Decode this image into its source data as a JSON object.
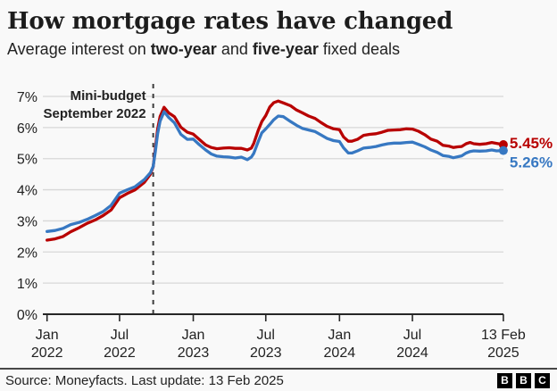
{
  "header": {
    "title": "How mortgage rates have changed",
    "subtitle_prefix": "Average interest on ",
    "series1_label": "two-year",
    "subtitle_and": " and ",
    "series2_label": "five-year",
    "subtitle_suffix": " fixed deals"
  },
  "colors": {
    "two_year": "#b80000",
    "five_year": "#3778c2",
    "grid": "#d8d8d8",
    "axis": "#262626",
    "dashed_line": "#3c3c3c",
    "text": "#222222",
    "background": "#f9f9f9"
  },
  "chart_data": {
    "type": "line",
    "x_unit": "days since 1 Jan 2022",
    "ylim": [
      0,
      7
    ],
    "grid": "horizontal",
    "y_ticks": [
      {
        "label": "0%",
        "value": 0
      },
      {
        "label": "1%",
        "value": 1
      },
      {
        "label": "2%",
        "value": 2
      },
      {
        "label": "3%",
        "value": 3
      },
      {
        "label": "4%",
        "value": 4
      },
      {
        "label": "5%",
        "value": 5
      },
      {
        "label": "6%",
        "value": 6
      },
      {
        "label": "7%",
        "value": 7
      }
    ],
    "x_ticks": [
      {
        "line1": "Jan",
        "line2": "2022",
        "day": 0
      },
      {
        "line1": "Jul",
        "line2": "2022",
        "day": 181
      },
      {
        "line1": "Jan",
        "line2": "2023",
        "day": 365
      },
      {
        "line1": "Jul",
        "line2": "2023",
        "day": 546
      },
      {
        "line1": "Jan",
        "line2": "2024",
        "day": 730
      },
      {
        "line1": "Jul",
        "line2": "2024",
        "day": 912
      },
      {
        "line1": "13 Feb",
        "line2": "2025",
        "day": 1139
      }
    ],
    "annotation": {
      "line1": "Mini-budget",
      "line2": "September 2022",
      "day": 265
    },
    "series": [
      {
        "name": "two-year",
        "color": "#b80000",
        "end_label": "5.45%",
        "points": [
          [
            0,
            2.38
          ],
          [
            20,
            2.42
          ],
          [
            40,
            2.5
          ],
          [
            59,
            2.65
          ],
          [
            80,
            2.78
          ],
          [
            100,
            2.92
          ],
          [
            120,
            3.03
          ],
          [
            140,
            3.17
          ],
          [
            160,
            3.35
          ],
          [
            181,
            3.74
          ],
          [
            200,
            3.88
          ],
          [
            220,
            4.0
          ],
          [
            243,
            4.24
          ],
          [
            258,
            4.5
          ],
          [
            265,
            4.74
          ],
          [
            270,
            5.3
          ],
          [
            276,
            5.95
          ],
          [
            282,
            6.35
          ],
          [
            292,
            6.65
          ],
          [
            304,
            6.47
          ],
          [
            318,
            6.35
          ],
          [
            334,
            6.01
          ],
          [
            350,
            5.85
          ],
          [
            365,
            5.79
          ],
          [
            380,
            5.62
          ],
          [
            396,
            5.44
          ],
          [
            410,
            5.36
          ],
          [
            424,
            5.32
          ],
          [
            440,
            5.34
          ],
          [
            455,
            5.35
          ],
          [
            470,
            5.33
          ],
          [
            485,
            5.33
          ],
          [
            500,
            5.28
          ],
          [
            510,
            5.34
          ],
          [
            516,
            5.49
          ],
          [
            527,
            5.9
          ],
          [
            536,
            6.19
          ],
          [
            546,
            6.39
          ],
          [
            556,
            6.66
          ],
          [
            566,
            6.8
          ],
          [
            577,
            6.85
          ],
          [
            590,
            6.79
          ],
          [
            608,
            6.7
          ],
          [
            623,
            6.56
          ],
          [
            638,
            6.47
          ],
          [
            653,
            6.37
          ],
          [
            669,
            6.29
          ],
          [
            684,
            6.16
          ],
          [
            699,
            6.04
          ],
          [
            715,
            5.96
          ],
          [
            730,
            5.93
          ],
          [
            740,
            5.7
          ],
          [
            752,
            5.56
          ],
          [
            761,
            5.56
          ],
          [
            775,
            5.62
          ],
          [
            790,
            5.75
          ],
          [
            805,
            5.78
          ],
          [
            821,
            5.8
          ],
          [
            836,
            5.85
          ],
          [
            851,
            5.91
          ],
          [
            866,
            5.92
          ],
          [
            882,
            5.93
          ],
          [
            897,
            5.96
          ],
          [
            912,
            5.95
          ],
          [
            927,
            5.88
          ],
          [
            943,
            5.77
          ],
          [
            958,
            5.63
          ],
          [
            974,
            5.56
          ],
          [
            988,
            5.43
          ],
          [
            1004,
            5.4
          ],
          [
            1014,
            5.36
          ],
          [
            1025,
            5.38
          ],
          [
            1035,
            5.39
          ],
          [
            1046,
            5.48
          ],
          [
            1056,
            5.52
          ],
          [
            1065,
            5.48
          ],
          [
            1080,
            5.46
          ],
          [
            1096,
            5.48
          ],
          [
            1110,
            5.52
          ],
          [
            1122,
            5.49
          ],
          [
            1139,
            5.45
          ]
        ]
      },
      {
        "name": "five-year",
        "color": "#3778c2",
        "end_label": "5.26%",
        "points": [
          [
            0,
            2.66
          ],
          [
            20,
            2.69
          ],
          [
            40,
            2.76
          ],
          [
            59,
            2.88
          ],
          [
            80,
            2.95
          ],
          [
            100,
            3.05
          ],
          [
            120,
            3.17
          ],
          [
            140,
            3.3
          ],
          [
            160,
            3.5
          ],
          [
            181,
            3.89
          ],
          [
            200,
            4.0
          ],
          [
            220,
            4.1
          ],
          [
            243,
            4.33
          ],
          [
            258,
            4.55
          ],
          [
            265,
            4.75
          ],
          [
            270,
            5.2
          ],
          [
            276,
            5.8
          ],
          [
            282,
            6.2
          ],
          [
            292,
            6.51
          ],
          [
            304,
            6.32
          ],
          [
            318,
            6.15
          ],
          [
            334,
            5.78
          ],
          [
            350,
            5.62
          ],
          [
            365,
            5.63
          ],
          [
            380,
            5.45
          ],
          [
            396,
            5.28
          ],
          [
            410,
            5.15
          ],
          [
            424,
            5.08
          ],
          [
            440,
            5.06
          ],
          [
            455,
            5.05
          ],
          [
            470,
            5.02
          ],
          [
            485,
            5.05
          ],
          [
            500,
            4.97
          ],
          [
            510,
            5.05
          ],
          [
            516,
            5.17
          ],
          [
            527,
            5.54
          ],
          [
            536,
            5.83
          ],
          [
            546,
            5.96
          ],
          [
            556,
            6.1
          ],
          [
            566,
            6.25
          ],
          [
            577,
            6.37
          ],
          [
            590,
            6.35
          ],
          [
            608,
            6.19
          ],
          [
            623,
            6.07
          ],
          [
            638,
            5.97
          ],
          [
            653,
            5.92
          ],
          [
            669,
            5.87
          ],
          [
            684,
            5.76
          ],
          [
            699,
            5.65
          ],
          [
            715,
            5.58
          ],
          [
            730,
            5.55
          ],
          [
            740,
            5.35
          ],
          [
            752,
            5.18
          ],
          [
            761,
            5.18
          ],
          [
            775,
            5.25
          ],
          [
            790,
            5.34
          ],
          [
            805,
            5.36
          ],
          [
            821,
            5.39
          ],
          [
            836,
            5.44
          ],
          [
            851,
            5.48
          ],
          [
            866,
            5.5
          ],
          [
            882,
            5.5
          ],
          [
            897,
            5.52
          ],
          [
            912,
            5.53
          ],
          [
            927,
            5.46
          ],
          [
            943,
            5.38
          ],
          [
            958,
            5.28
          ],
          [
            974,
            5.2
          ],
          [
            988,
            5.1
          ],
          [
            1004,
            5.07
          ],
          [
            1014,
            5.03
          ],
          [
            1025,
            5.06
          ],
          [
            1035,
            5.09
          ],
          [
            1046,
            5.18
          ],
          [
            1056,
            5.23
          ],
          [
            1065,
            5.25
          ],
          [
            1080,
            5.24
          ],
          [
            1096,
            5.25
          ],
          [
            1110,
            5.28
          ],
          [
            1122,
            5.25
          ],
          [
            1139,
            5.26
          ]
        ]
      }
    ]
  },
  "footer": {
    "source": "Source: Moneyfacts. Last update: 13 Feb 2025",
    "logo_letters": [
      "B",
      "B",
      "C"
    ]
  }
}
